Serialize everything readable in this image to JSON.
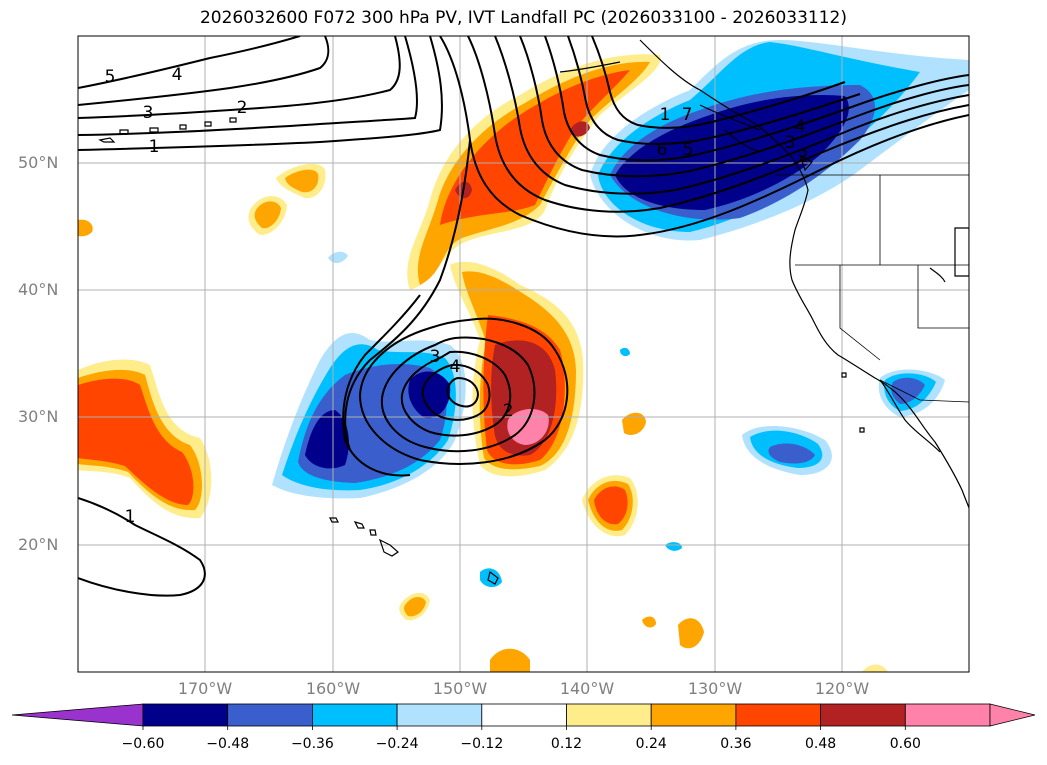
{
  "title": "2026032600 F072 300 hPa PV, IVT Landfall PC (2026033100 - 2026033112)",
  "lat_labels": [
    "50°N",
    "40°N",
    "30°N",
    "20°N"
  ],
  "lon_labels": [
    "170°W",
    "160°W",
    "150°W",
    "140°W",
    "130°W",
    "120°W"
  ],
  "colorbar": {
    "tick_labels": [
      "−0.60",
      "−0.48",
      "−0.36",
      "−0.24",
      "−0.12",
      "0.12",
      "0.24",
      "0.36",
      "0.48",
      "0.60"
    ],
    "colors": [
      "#9a32cd",
      "#00008b",
      "#3a5fcd",
      "#00bfff",
      "#b0e2ff",
      "#ffffff",
      "#ffec8b",
      "#ffa500",
      "#ff4500",
      "#b22222",
      "#ff82ab",
      "#ff82ab"
    ]
  },
  "contour_labels": [
    "5",
    "4",
    "3",
    "2",
    "1",
    "1",
    "7",
    "6",
    "5",
    "4",
    "3",
    "2",
    "3",
    "4",
    "2",
    "1"
  ],
  "colors": {
    "gridline": "#b0b0b0",
    "coast": "#000000",
    "contour": "#000000"
  }
}
